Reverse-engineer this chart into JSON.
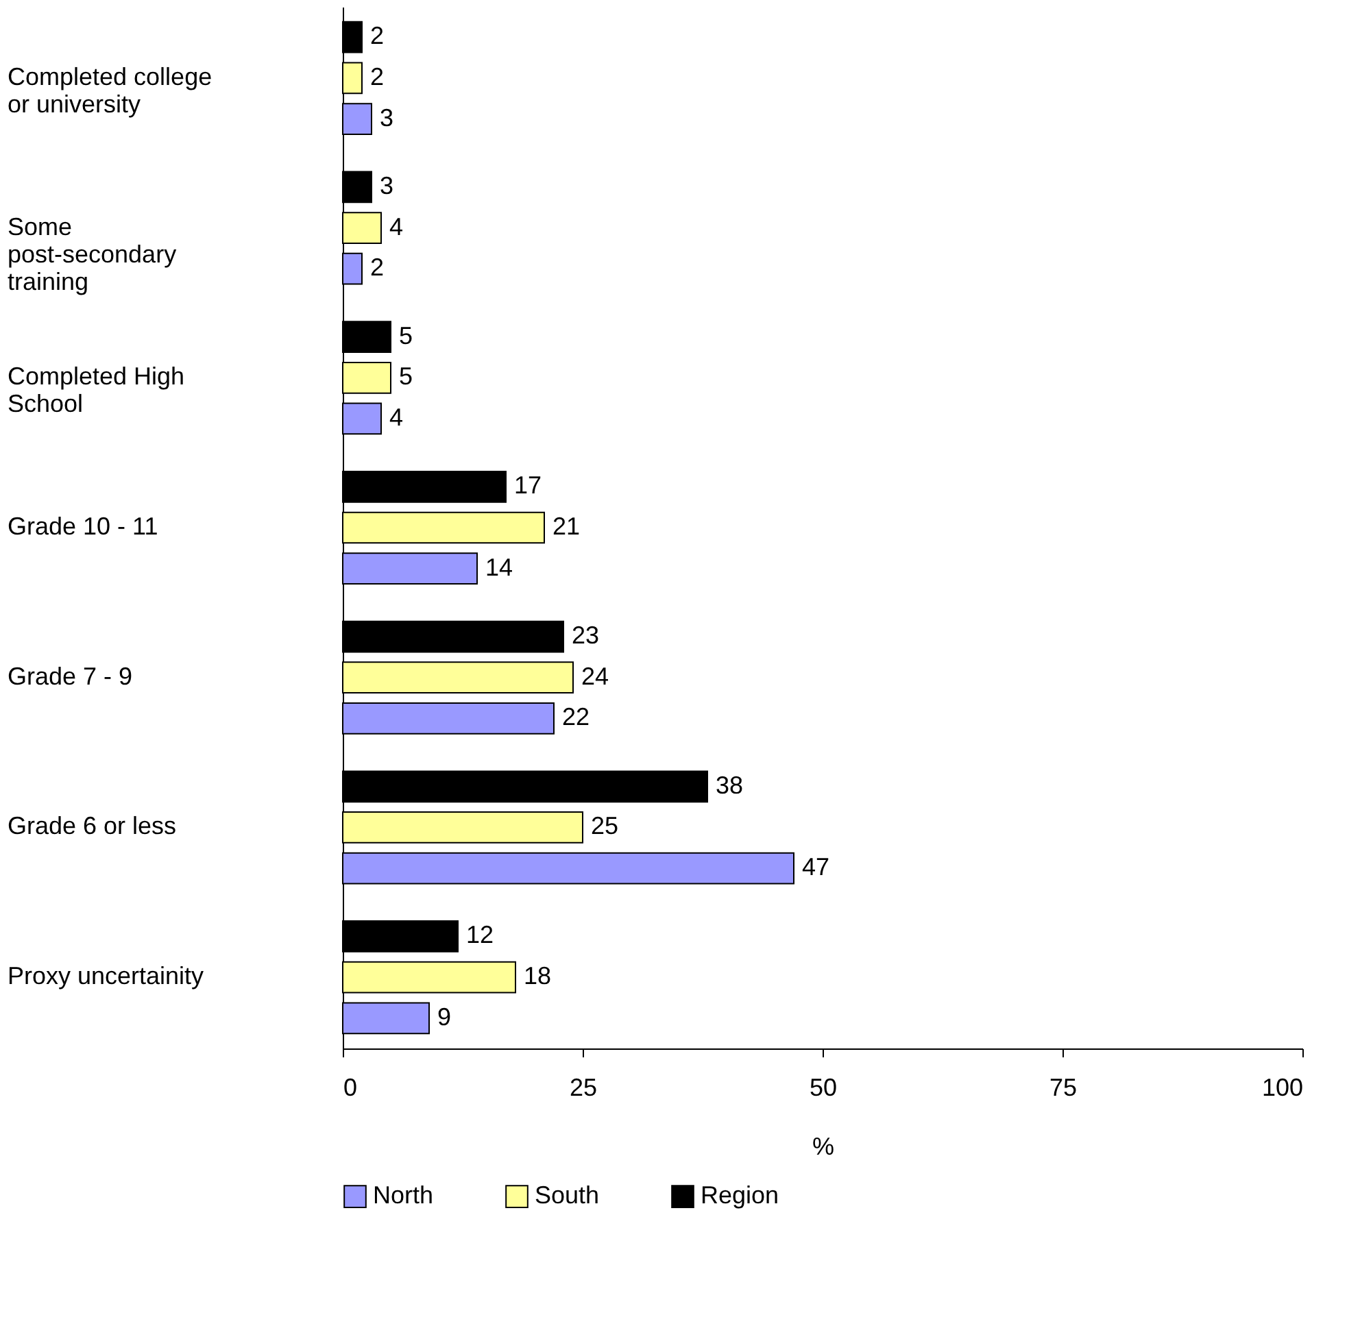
{
  "chart_data": {
    "type": "bar",
    "orientation": "horizontal",
    "xlabel": "%",
    "categories": [
      "Completed college or university",
      "Some post-secondary training",
      "Completed High School",
      "Grade 10 - 11",
      "Grade 7 - 9",
      "Grade 6 or less",
      "Proxy uncertainity"
    ],
    "series": [
      {
        "name": "North",
        "color": "#9999ff",
        "values": [
          3,
          2,
          4,
          14,
          22,
          47,
          9
        ]
      },
      {
        "name": "South",
        "color": "#ffff99",
        "values": [
          2,
          4,
          5,
          21,
          24,
          25,
          18
        ]
      },
      {
        "name": "Region",
        "color": "#000000",
        "values": [
          2,
          3,
          5,
          17,
          23,
          38,
          12
        ]
      }
    ],
    "xlim": [
      0,
      100
    ],
    "xticks": [
      0,
      25,
      50,
      75,
      100
    ],
    "data_labels": true,
    "grid": false,
    "legend": "bottom"
  }
}
